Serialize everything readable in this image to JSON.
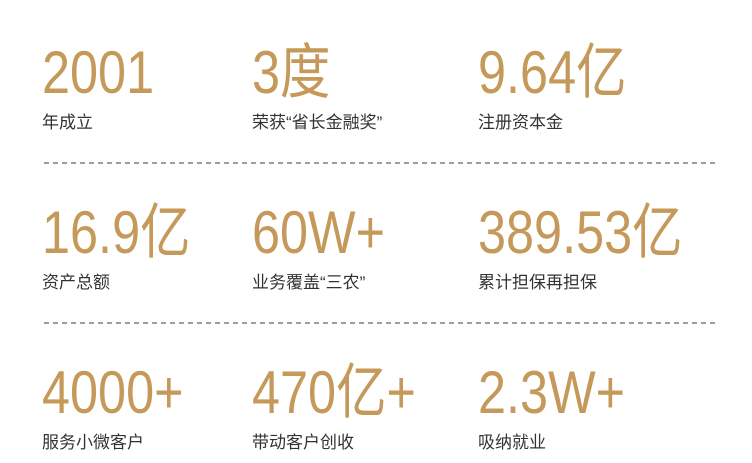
{
  "theme": {
    "accent_color": "#C5995A",
    "label_color": "#333333",
    "separator_color": "#9D9D9D",
    "background_color": "#FFFFFF"
  },
  "stats": [
    {
      "value": "2001",
      "label": "年成立"
    },
    {
      "value": "3度",
      "label": "荣获“省长金融奖”"
    },
    {
      "value": "9.64亿",
      "label": "注册资本金"
    },
    {
      "value": "16.9亿",
      "label": "资产总额"
    },
    {
      "value": "60W+",
      "label": "业务覆盖“三农”"
    },
    {
      "value": "389.53亿",
      "label": "累计担保再担保"
    },
    {
      "value": "4000+",
      "label": "服务小微客户"
    },
    {
      "value": "470亿+",
      "label": "带动客户创收"
    },
    {
      "value": "2.3W+",
      "label": "吸纳就业"
    }
  ]
}
